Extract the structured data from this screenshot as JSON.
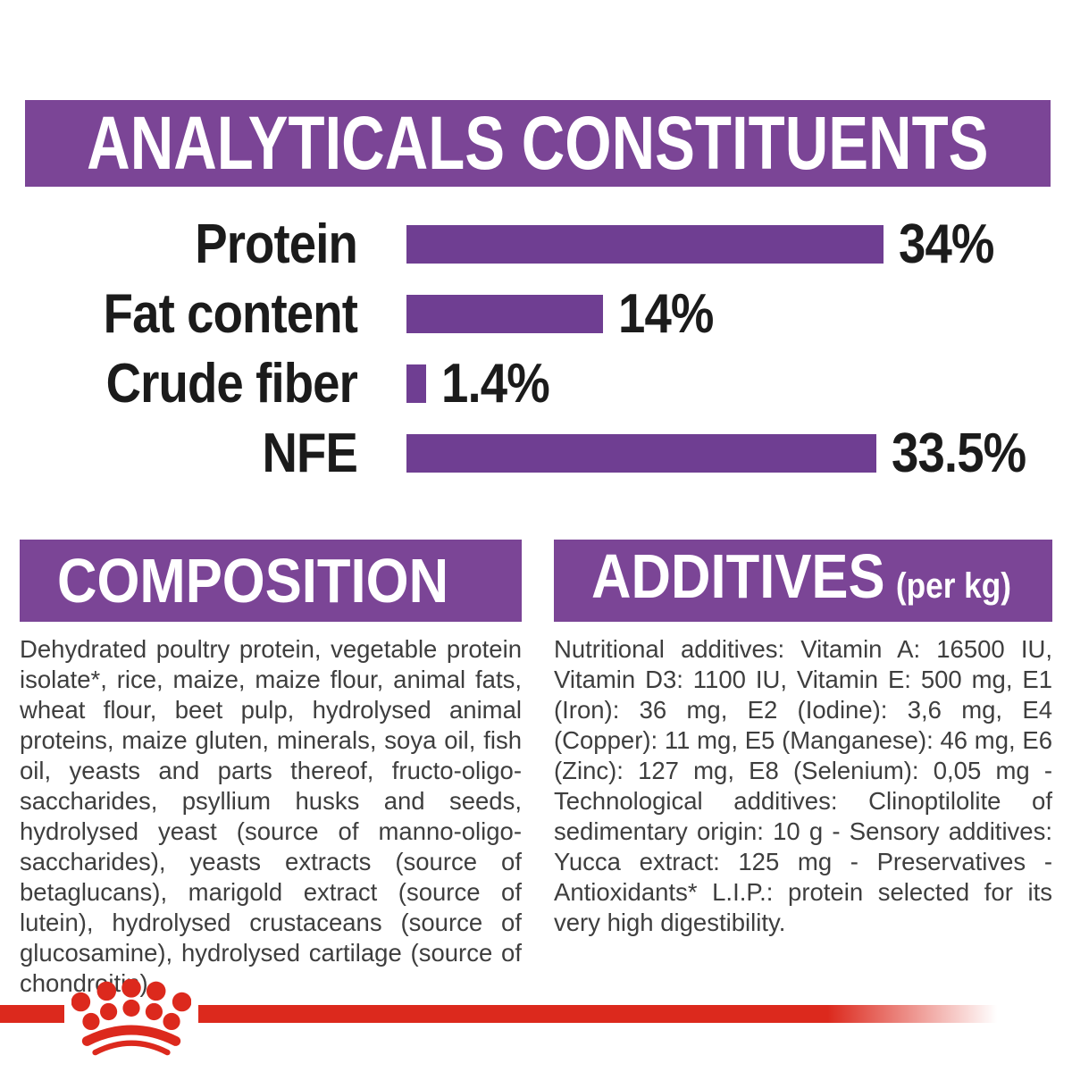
{
  "title_banner": {
    "text": "ANALYTICALS CONSTITUENTS"
  },
  "chart_data": {
    "type": "bar",
    "orientation": "horizontal",
    "title": "ANALYTICALS CONSTITUENTS",
    "categories": [
      "Protein",
      "Fat content",
      "Crude fiber",
      "NFE"
    ],
    "values": [
      34,
      14,
      1.4,
      33.5
    ],
    "value_labels": [
      "34%",
      "14%",
      "1.4%",
      "33.5%"
    ],
    "unit": "%",
    "xlim": [
      0,
      35
    ],
    "grid": false,
    "legend": false,
    "bar_color": "#6f3e92",
    "label_color": "#1b1b1b"
  },
  "composition": {
    "heading": "COMPOSITION",
    "body": "Dehydrated poultry protein, vegetable protein isolate*, rice, maize, maize flour, animal fats, wheat flour, beet pulp, hydrolysed animal proteins, maize gluten, minerals, soya oil, fish oil, yeasts and parts thereof, fructo-oligo-saccharides, psyllium husks and seeds, hydrolysed yeast (source of manno-oligo-saccharides), yeasts extracts (source of betaglucans), marigold extract (source of lutein), hydrolysed crustaceans (source of glucosamine), hydrolysed cartilage (source of chondroitin)."
  },
  "additives": {
    "heading": "ADDITIVES",
    "heading_suffix": "(per kg)",
    "body": "Nutritional additives: Vitamin A: 16500 IU, Vitamin D3: 1100 IU, Vitamin E: 500 mg, E1 (Iron): 36 mg, E2 (Iodine): 3,6 mg, E4 (Copper): 11 mg, E5 (Manganese): 46 mg, E6 (Zinc): 127 mg, E8 (Selenium): 0,05 mg - Technological additives: Clinoptilolite of sedimentary origin: 10 g - Sensory additives: Yucca extract: 125 mg - Preservatives - Antioxidants* L.I.P.: protein selected for its very high digestibility."
  },
  "footer": {
    "logo": "royal-canin-crown"
  },
  "colors": {
    "banner_purple": "#7b4596",
    "bar_purple": "#6f3e92",
    "accent_red": "#dc291d",
    "label_black": "#1b1b1b",
    "body_gray": "#3e3e3e"
  }
}
